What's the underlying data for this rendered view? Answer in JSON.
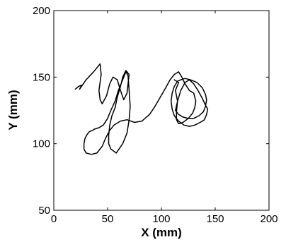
{
  "chart_data": {
    "type": "line",
    "title": "",
    "xlabel": "X (mm)",
    "ylabel": "Y (mm)",
    "xlim": [
      0,
      200
    ],
    "ylim": [
      50,
      200
    ],
    "xticks": [
      0,
      50,
      100,
      150,
      200
    ],
    "yticks": [
      50,
      100,
      150,
      200
    ],
    "grid": false,
    "series": [
      {
        "color": "#000000",
        "x": [
          20,
          23,
          26,
          24,
          30,
          37,
          43,
          44,
          42,
          43,
          45,
          49,
          52,
          55,
          59,
          62,
          65,
          68,
          70,
          67,
          64,
          62,
          59,
          57,
          54,
          52,
          51,
          51,
          53,
          58,
          64,
          68,
          70,
          71,
          70,
          69,
          67,
          64,
          60,
          57,
          53,
          50,
          46,
          42,
          38,
          36,
          33,
          31,
          29,
          28,
          28,
          30,
          35,
          40,
          45,
          48,
          52,
          56,
          62,
          68,
          75,
          82,
          89,
          94,
          99,
          104,
          108,
          112,
          116,
          119,
          122,
          126,
          130,
          132,
          131,
          129,
          125,
          120,
          116,
          114,
          114,
          115,
          118,
          122,
          126,
          130,
          134,
          138,
          141,
          143,
          142,
          140,
          136,
          131,
          126,
          121,
          116,
          112,
          110,
          109,
          110,
          112,
          115,
          118,
          122,
          127,
          133,
          138,
          141,
          142,
          141,
          139,
          135,
          130,
          125,
          120,
          116,
          113,
          115,
          113,
          116,
          112
        ],
        "y": [
          141,
          143,
          144,
          141,
          148,
          154,
          160,
          152,
          140,
          133,
          130,
          136,
          145,
          150,
          148,
          140,
          133,
          138,
          152,
          155,
          150,
          143,
          135,
          127,
          121,
          114,
          106,
          100,
          96,
          93,
          100,
          108,
          118,
          128,
          140,
          151,
          154,
          148,
          140,
          132,
          125,
          119,
          114,
          112,
          111,
          110,
          109,
          107,
          104,
          100,
          96,
          93,
          92,
          93,
          98,
          104,
          110,
          114,
          117,
          118,
          116,
          117,
          122,
          128,
          135,
          142,
          148,
          152,
          154,
          150,
          145,
          140,
          138,
          132,
          127,
          123,
          119,
          116,
          115,
          118,
          124,
          132,
          140,
          146,
          148,
          145,
          140,
          134,
          129,
          126,
          122,
          118,
          116,
          114,
          113,
          114,
          117,
          121,
          126,
          132,
          138,
          143,
          147,
          148,
          149,
          148,
          146,
          142,
          137,
          133,
          128,
          124,
          121,
          119,
          119,
          120,
          122,
          125,
          132,
          140,
          146,
          148
        ]
      }
    ]
  }
}
